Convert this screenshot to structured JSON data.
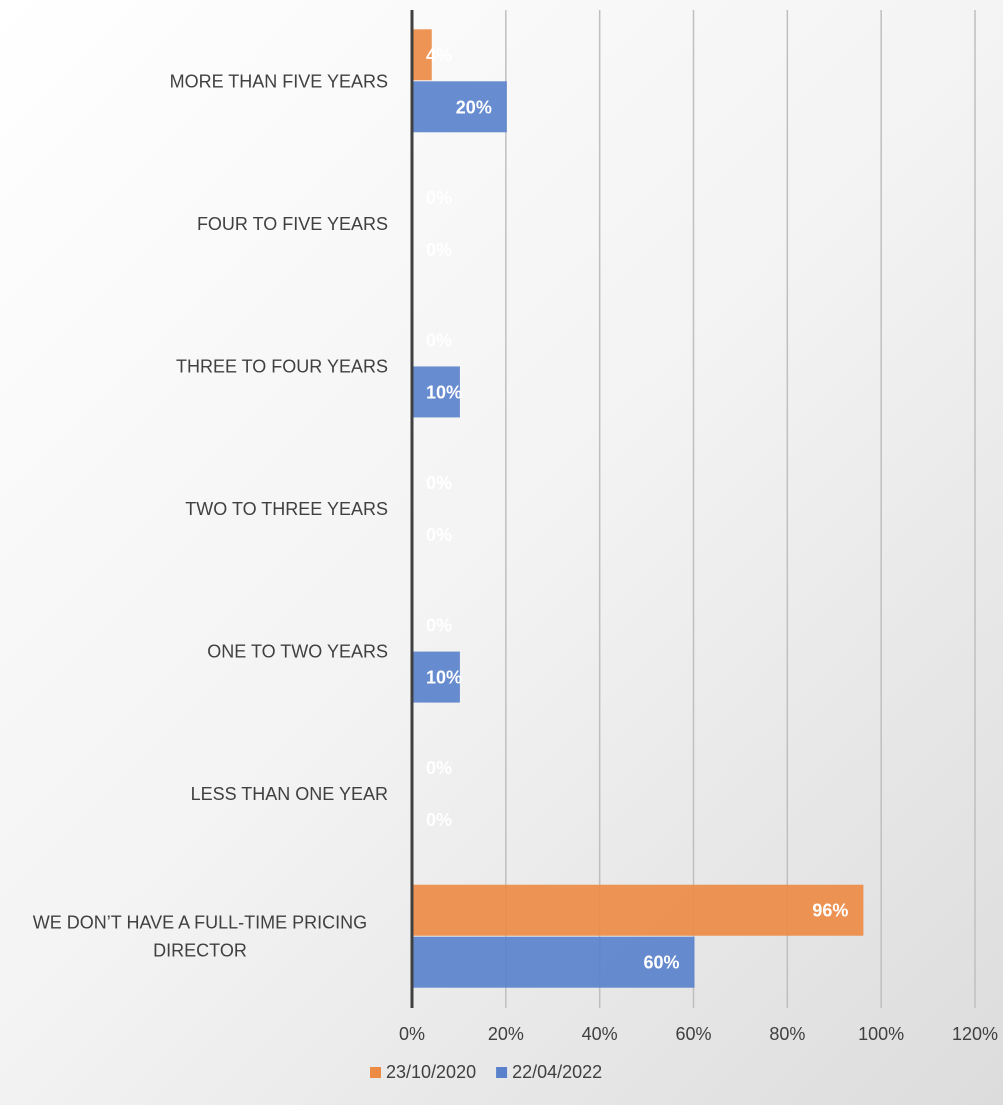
{
  "chart_data": {
    "type": "bar",
    "orientation": "horizontal",
    "categories": [
      "MORE THAN FIVE YEARS",
      "FOUR TO FIVE YEARS",
      "THREE TO FOUR YEARS",
      "TWO TO THREE YEARS",
      "ONE TO TWO YEARS",
      "LESS THAN ONE YEAR",
      "WE DON’T HAVE A FULL-TIME PRICING DIRECTOR"
    ],
    "series": [
      {
        "name": "23/10/2020",
        "color": "#ED8B45",
        "values": [
          4,
          0,
          0,
          0,
          0,
          0,
          96
        ],
        "labels": [
          "4%",
          "0%",
          "0%",
          "0%",
          "0%",
          "0%",
          "96%"
        ]
      },
      {
        "name": "22/04/2022",
        "color": "#5A82CC",
        "values": [
          20,
          0,
          10,
          0,
          10,
          0,
          60
        ],
        "labels": [
          "20%",
          "0%",
          "10%",
          "0%",
          "10%",
          "0%",
          "60%"
        ]
      }
    ],
    "xlim": [
      0,
      120
    ],
    "xticks": [
      "0%",
      "20%",
      "40%",
      "60%",
      "80%",
      "100%",
      "120%"
    ],
    "xlabel": "",
    "ylabel": "",
    "grid": true,
    "legend_position": "bottom"
  }
}
